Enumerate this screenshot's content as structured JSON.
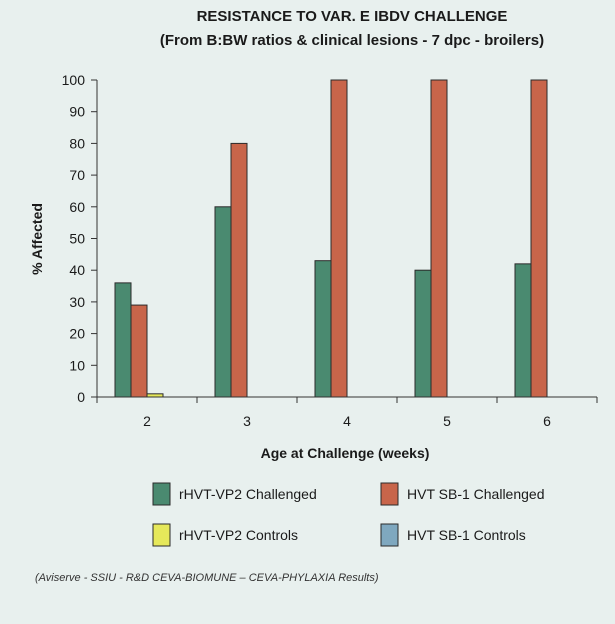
{
  "chart_data": {
    "type": "bar",
    "title": "RESISTANCE TO VAR. E IBDV CHALLENGE",
    "subtitle": "(From B:BW ratios & clinical lesions - 7 dpc - broilers)",
    "xlabel": "Age at Challenge (weeks)",
    "ylabel": "% Affected",
    "categories": [
      "2",
      "3",
      "4",
      "5",
      "6"
    ],
    "ylim": [
      0,
      100
    ],
    "yticks": [
      0,
      10,
      20,
      30,
      40,
      50,
      60,
      70,
      80,
      90,
      100
    ],
    "grid": false,
    "legend_position": "bottom",
    "series": [
      {
        "name": "rHVT-VP2 Challenged",
        "color": "#4a8a70",
        "values": [
          36,
          60,
          43,
          40,
          42
        ]
      },
      {
        "name": "HVT SB-1 Challenged",
        "color": "#c8654a",
        "values": [
          29,
          80,
          100,
          100,
          100
        ]
      },
      {
        "name": "rHVT-VP2 Controls",
        "color": "#e6e85a",
        "values": [
          1,
          0,
          0,
          0,
          0
        ]
      },
      {
        "name": "HVT SB-1 Controls",
        "color": "#7fa8bf",
        "values": [
          0,
          0,
          0,
          0,
          0
        ]
      }
    ]
  },
  "source_note": "(Aviserve - SSIU - R&D CEVA-BIOMUNE – CEVA-PHYLAXIA Results)"
}
